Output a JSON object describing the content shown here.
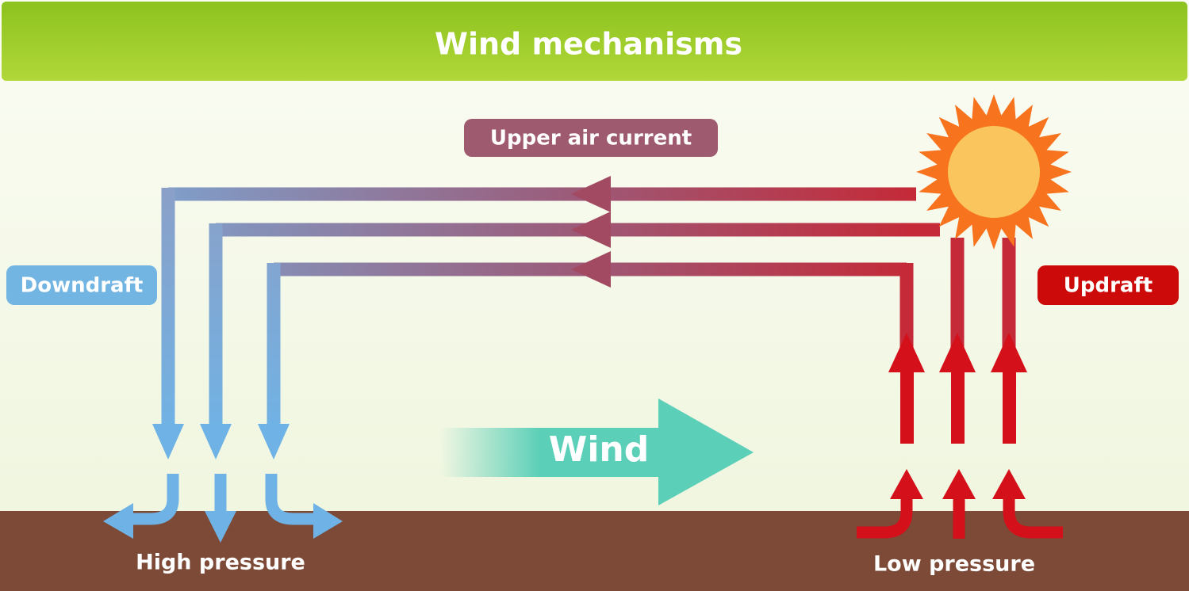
{
  "header": {
    "title": "Wind mechanisms"
  },
  "labels": {
    "upper_air_current": "Upper air current",
    "downdraft": "Downdraft",
    "updraft": "Updraft",
    "wind": "Wind",
    "high_pressure": "High pressure",
    "low_pressure": "Low pressure"
  }
}
